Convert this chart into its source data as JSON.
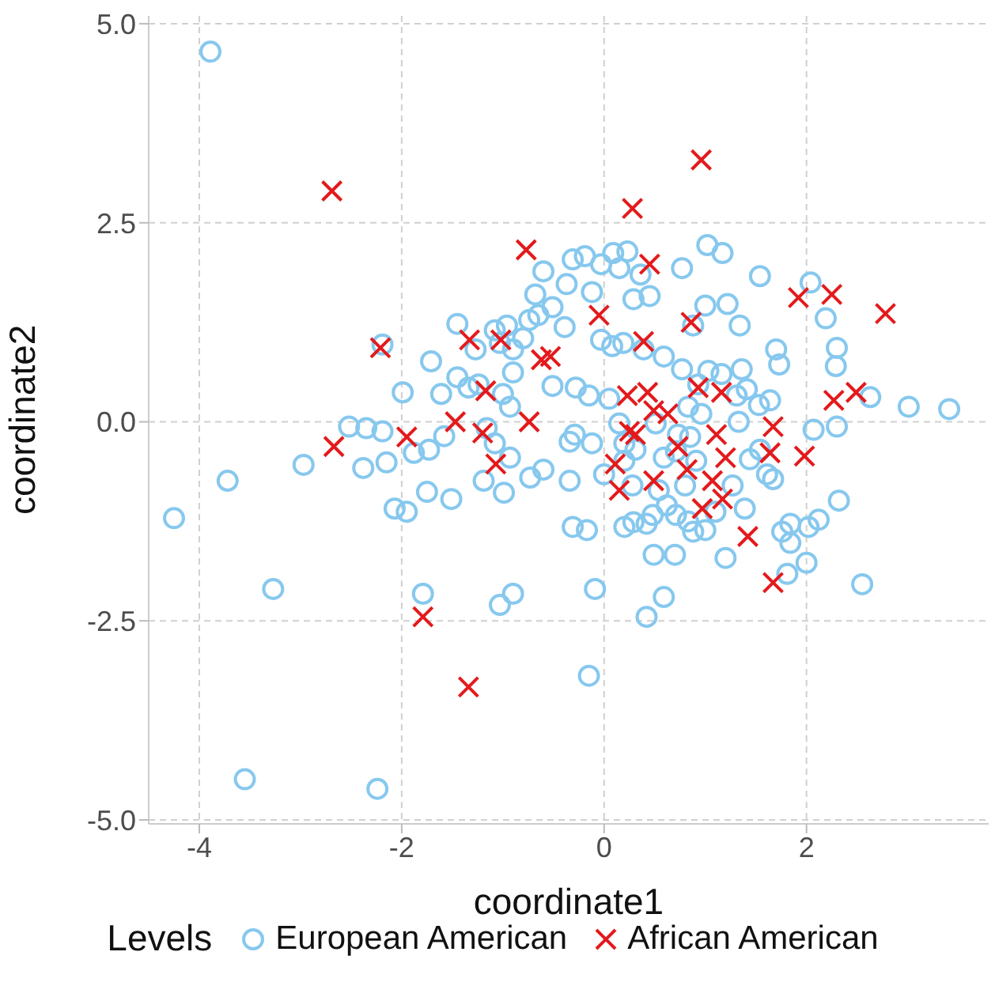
{
  "chart_data": {
    "type": "scatter",
    "xlabel": "coordinate1",
    "ylabel": "coordinate2",
    "legend_title": "Levels",
    "legend": "bottom",
    "grid": true,
    "xlim": [
      -4.5,
      3.8
    ],
    "ylim": [
      -5.05,
      5.1
    ],
    "xticks": [
      -4,
      -2,
      0,
      2
    ],
    "yticks": [
      {
        "value": -5,
        "label": "-5.0"
      },
      {
        "value": -2.5,
        "label": "-2.5"
      },
      {
        "value": 0,
        "label": "0.0"
      },
      {
        "value": 2.5,
        "label": "2.5"
      },
      {
        "value": 5,
        "label": "5.0"
      }
    ],
    "series": [
      {
        "name": "European American",
        "color": "#87c8ee",
        "marker": "circle",
        "x": [
          -3.89,
          -3.72,
          -4.25,
          -3.27,
          -3.55,
          -2.24,
          -2.97,
          -2.52,
          -2.35,
          -2.19,
          -2.38,
          -2.15,
          -1.88,
          -1.73,
          -1.58,
          -2.07,
          -1.95,
          -1.75,
          -1.51,
          -1.79,
          -1.99,
          -2.19,
          -1.71,
          -1.61,
          -1.45,
          -1.34,
          -1.24,
          -1.45,
          -1.27,
          -1.08,
          -0.96,
          -1.03,
          -0.9,
          -0.8,
          -0.74,
          -0.65,
          -0.68,
          -0.6,
          -0.37,
          -0.51,
          -0.39,
          -0.93,
          -1.16,
          -1.08,
          -0.93,
          -1.19,
          -0.99,
          -0.73,
          -0.6,
          -0.34,
          -0.34,
          -0.29,
          -0.15,
          -0.28,
          -0.31,
          -0.17,
          -0.09,
          -1.03,
          -0.9,
          -0.15,
          -0.9,
          -1.0,
          -0.51,
          -0.31,
          -0.19,
          -0.03,
          0.09,
          0.23,
          0.15,
          0.36,
          0.45,
          0.29,
          -0.12,
          0.77,
          1.02,
          1.17,
          1.54,
          1.22,
          1.0,
          0.88,
          1.34,
          -0.03,
          0.08,
          0.19,
          0.39,
          0.59,
          0.77,
          0.93,
          1.16,
          1.36,
          1.41,
          1.53,
          1.7,
          1.73,
          2.04,
          2.19,
          2.3,
          2.29,
          2.3,
          2.07,
          2.63,
          3.01,
          3.41,
          2.32,
          2.55,
          2.12,
          2.02,
          1.84,
          1.84,
          1.76,
          2.0,
          1.81,
          1.67,
          1.61,
          1.39,
          1.2,
          1.27,
          1.44,
          0.83,
          0.88,
          1.0,
          0.71,
          0.7,
          0.49,
          0.59,
          0.42,
          0.2,
          0.29,
          0.42,
          0.48,
          0.62,
          0.28,
          0.54,
          0.8,
          0.91,
          0.73,
          0.51,
          0.96,
          1.33,
          1.64,
          0.31,
          0.2,
          0.0,
          -0.12,
          0.15,
          0.05,
          0.83,
          1.03,
          1.31,
          1.54,
          1.1,
          0.2,
          0.59,
          0.71,
          0.85
        ],
        "values": [
          4.65,
          -0.74,
          -1.21,
          -2.1,
          -4.49,
          -4.61,
          -0.54,
          -0.06,
          -0.08,
          -0.12,
          -0.58,
          -0.51,
          -0.39,
          -0.35,
          -0.18,
          -1.09,
          -1.13,
          -0.88,
          -0.97,
          -2.16,
          0.37,
          0.97,
          0.76,
          0.35,
          0.56,
          0.43,
          0.47,
          1.23,
          0.91,
          1.15,
          1.21,
          0.99,
          0.91,
          1.05,
          1.28,
          1.34,
          1.6,
          1.89,
          1.73,
          1.44,
          1.19,
          0.19,
          -0.08,
          -0.27,
          -0.45,
          -0.74,
          -0.89,
          -0.7,
          -0.6,
          -0.74,
          -0.25,
          -0.16,
          0.33,
          0.43,
          -1.32,
          -1.36,
          -2.1,
          -2.3,
          -2.16,
          -3.19,
          0.62,
          0.35,
          0.45,
          2.04,
          2.08,
          1.98,
          2.12,
          2.14,
          1.93,
          1.85,
          1.58,
          1.54,
          1.63,
          1.93,
          2.22,
          2.12,
          1.83,
          1.48,
          1.46,
          1.21,
          1.21,
          1.03,
          0.95,
          0.99,
          0.91,
          0.82,
          0.66,
          0.47,
          0.6,
          0.66,
          0.41,
          0.21,
          0.91,
          0.72,
          1.75,
          1.3,
          0.93,
          0.7,
          -0.06,
          -0.1,
          0.31,
          0.19,
          0.16,
          -0.99,
          -2.04,
          -1.23,
          -1.32,
          -1.28,
          -1.52,
          -1.38,
          -1.77,
          -1.91,
          -0.72,
          -0.66,
          -1.09,
          -1.71,
          -0.8,
          -0.47,
          -1.25,
          -1.38,
          -1.36,
          -1.17,
          -1.67,
          -1.67,
          -2.2,
          -2.45,
          -1.32,
          -1.26,
          -1.28,
          -1.17,
          -1.05,
          -0.8,
          -0.86,
          -0.8,
          -0.49,
          -0.16,
          -0.02,
          0.1,
          0.0,
          0.27,
          -0.35,
          -0.49,
          -0.66,
          -0.27,
          -0.02,
          0.29,
          0.19,
          0.64,
          0.33,
          -0.35,
          -1.13,
          -0.27,
          -0.45,
          -0.37,
          -0.19
        ]
      },
      {
        "name": "African American",
        "color": "#e31a1c",
        "marker": "cross",
        "x": [
          -2.69,
          0.96,
          0.28,
          -0.77,
          0.45,
          -0.05,
          -2.21,
          -1.33,
          -1.02,
          -0.62,
          -0.53,
          0.39,
          0.86,
          1.92,
          2.25,
          2.78,
          2.49,
          2.27,
          -2.67,
          -1.95,
          -1.47,
          -1.17,
          -1.2,
          -1.07,
          -0.74,
          0.23,
          0.25,
          0.43,
          0.49,
          0.93,
          1.16,
          1.67,
          1.64,
          1.98,
          0.15,
          0.49,
          0.73,
          0.97,
          1.2,
          1.17,
          1.42,
          1.67,
          -1.79,
          -1.34,
          0.31,
          0.63,
          1.07,
          1.11,
          0.11,
          0.82
        ],
        "values": [
          2.9,
          3.29,
          2.68,
          2.16,
          1.98,
          1.34,
          0.93,
          1.03,
          1.03,
          0.78,
          0.82,
          1.01,
          1.25,
          1.56,
          1.6,
          1.36,
          0.37,
          0.27,
          -0.31,
          -0.19,
          0.0,
          0.39,
          -0.14,
          -0.53,
          0.0,
          0.33,
          -0.12,
          0.37,
          0.14,
          0.43,
          0.37,
          -0.06,
          -0.39,
          -0.43,
          -0.86,
          -0.74,
          -0.31,
          -1.09,
          -0.45,
          -0.97,
          -1.44,
          -2.02,
          -2.45,
          -3.33,
          -0.16,
          0.1,
          -0.74,
          -0.16,
          -0.53,
          -0.6
        ]
      }
    ]
  }
}
